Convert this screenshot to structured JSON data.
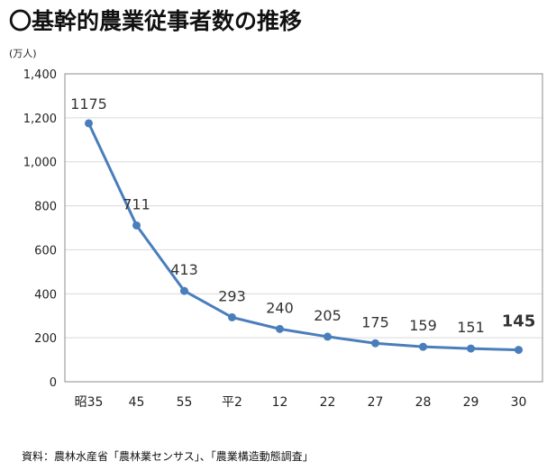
{
  "title": "〇基幹的農業従事者数の推移",
  "unit_label": "(万人)",
  "source": "資料：農林水産省「農林業センサス」、「農業構造動態調査」",
  "colors": {
    "line": "#4a7ebb",
    "highlight": "#e31b1b",
    "grid": "#d9d9d9",
    "frame": "#8c8c8c"
  },
  "chart_data": {
    "type": "line",
    "categories": [
      "昭35",
      "45",
      "55",
      "平2",
      "12",
      "22",
      "27",
      "28",
      "29",
      "30"
    ],
    "values": [
      1175,
      711,
      413,
      293,
      240,
      205,
      175,
      159,
      151,
      145
    ],
    "value_labels": [
      "1175",
      "711",
      "413",
      "293",
      "240",
      "205",
      "175",
      "159",
      "151",
      "145"
    ],
    "highlight_index": 9,
    "y_ticks": [
      0,
      200,
      400,
      600,
      800,
      1000,
      1200,
      1400
    ],
    "y_tick_labels": [
      "0",
      "200",
      "400",
      "600",
      "800",
      "1,000",
      "1,200",
      "1,400"
    ],
    "ylim": [
      0,
      1400
    ],
    "grid": true,
    "legend": false
  }
}
